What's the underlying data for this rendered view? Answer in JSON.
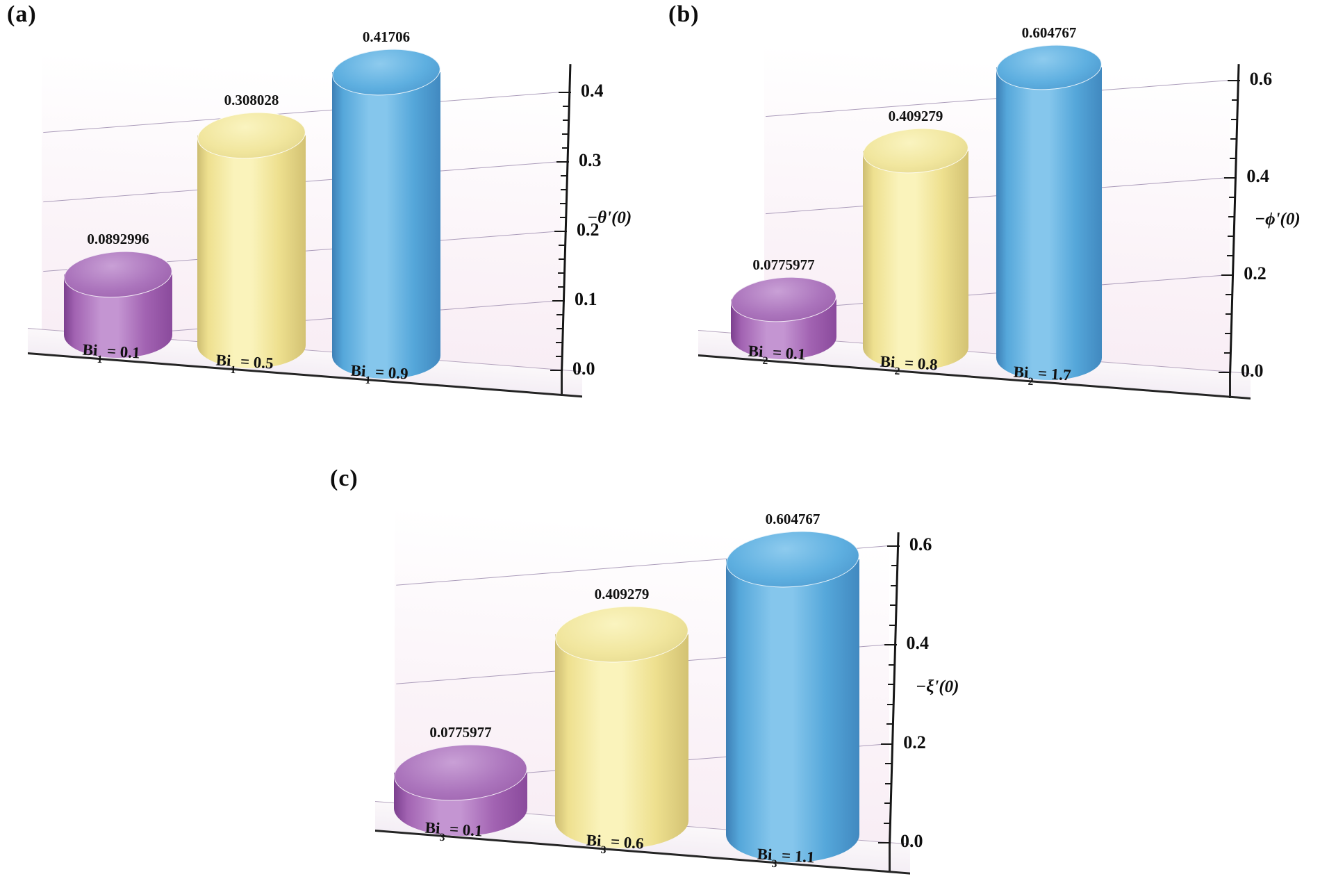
{
  "chart_data": [
    {
      "type": "bar",
      "panel": "(a)",
      "categories": [
        "Bi1 = 0.1",
        "Bi1 = 0.5",
        "Bi1 = 0.9"
      ],
      "category_parts": [
        {
          "pre": "Bi",
          "sub": "1",
          "post": " = 0.1"
        },
        {
          "pre": "Bi",
          "sub": "1",
          "post": " = 0.5"
        },
        {
          "pre": "Bi",
          "sub": "1",
          "post": " = 0.9"
        }
      ],
      "values": [
        0.0892996,
        0.308028,
        0.41706
      ],
      "value_labels": [
        "0.0892996",
        "0.308028",
        "0.41706"
      ],
      "ylabel": "−θ'(0)",
      "yticks": [
        0.0,
        0.1,
        0.2,
        0.3,
        0.4
      ],
      "ytick_labels": [
        "0.0",
        "0.1",
        "0.2",
        "0.3",
        "0.4"
      ],
      "ylim": [
        0,
        0.45
      ],
      "bar_colors": [
        "purple",
        "yellow",
        "blue"
      ],
      "grid": true,
      "legend": false
    },
    {
      "type": "bar",
      "panel": "(b)",
      "categories": [
        "Bi2 = 0.1",
        "Bi2 = 0.8",
        "Bi2 = 1.7"
      ],
      "category_parts": [
        {
          "pre": "Bi",
          "sub": "2",
          "post": " = 0.1"
        },
        {
          "pre": "Bi",
          "sub": "2",
          "post": " = 0.8"
        },
        {
          "pre": "Bi",
          "sub": "2",
          "post": " = 1.7"
        }
      ],
      "values": [
        0.0775977,
        0.409279,
        0.604767
      ],
      "value_labels": [
        "0.0775977",
        "0.409279",
        "0.604767"
      ],
      "ylabel": "−ϕ'(0)",
      "yticks": [
        0.0,
        0.2,
        0.4,
        0.6
      ],
      "ytick_labels": [
        "0.0",
        "0.2",
        "0.4",
        "0.6"
      ],
      "ylim": [
        0,
        0.65
      ],
      "bar_colors": [
        "purple",
        "yellow",
        "blue"
      ],
      "grid": true,
      "legend": false
    },
    {
      "type": "bar",
      "panel": "(c)",
      "categories": [
        "Bi3 = 0.1",
        "Bi3 = 0.6",
        "Bi3 = 1.1"
      ],
      "category_parts": [
        {
          "pre": "Bi",
          "sub": "3",
          "post": " = 0.1"
        },
        {
          "pre": "Bi",
          "sub": "3",
          "post": " = 0.6"
        },
        {
          "pre": "Bi",
          "sub": "3",
          "post": " = 1.1"
        }
      ],
      "values": [
        0.0775977,
        0.409279,
        0.604767
      ],
      "value_labels": [
        "0.0775977",
        "0.409279",
        "0.604767"
      ],
      "ylabel": "−ξ'(0)",
      "yticks": [
        0.0,
        0.2,
        0.4,
        0.6
      ],
      "ytick_labels": [
        "0.0",
        "0.2",
        "0.4",
        "0.6"
      ],
      "ylim": [
        0,
        0.65
      ],
      "bar_colors": [
        "purple",
        "yellow",
        "blue"
      ],
      "grid": true,
      "legend": false
    }
  ],
  "palette": {
    "purple": {
      "edgeL": "#7b3f8e",
      "light": "#c495d2",
      "mid": "#a263b2",
      "edgeR": "#8a4a9c",
      "capLight": "#c9a0d6",
      "capMid": "#ab74bc",
      "capDark": "#965aa6"
    },
    "yellow": {
      "edgeL": "#cdbd72",
      "light": "#faf3bb",
      "mid": "#eee08f",
      "edgeR": "#d3c273",
      "capLight": "#faf4c0",
      "capMid": "#f1e69e",
      "capDark": "#ded186"
    },
    "blue": {
      "edgeL": "#3d7fb5",
      "light": "#85c6ec",
      "mid": "#55a7da",
      "edgeR": "#4189c0",
      "capLight": "#8ecbee",
      "capMid": "#5eafe0",
      "capDark": "#4691c8"
    },
    "gridline": "#ab9cba",
    "axis": "#161616",
    "text": "#0d0d0d"
  }
}
